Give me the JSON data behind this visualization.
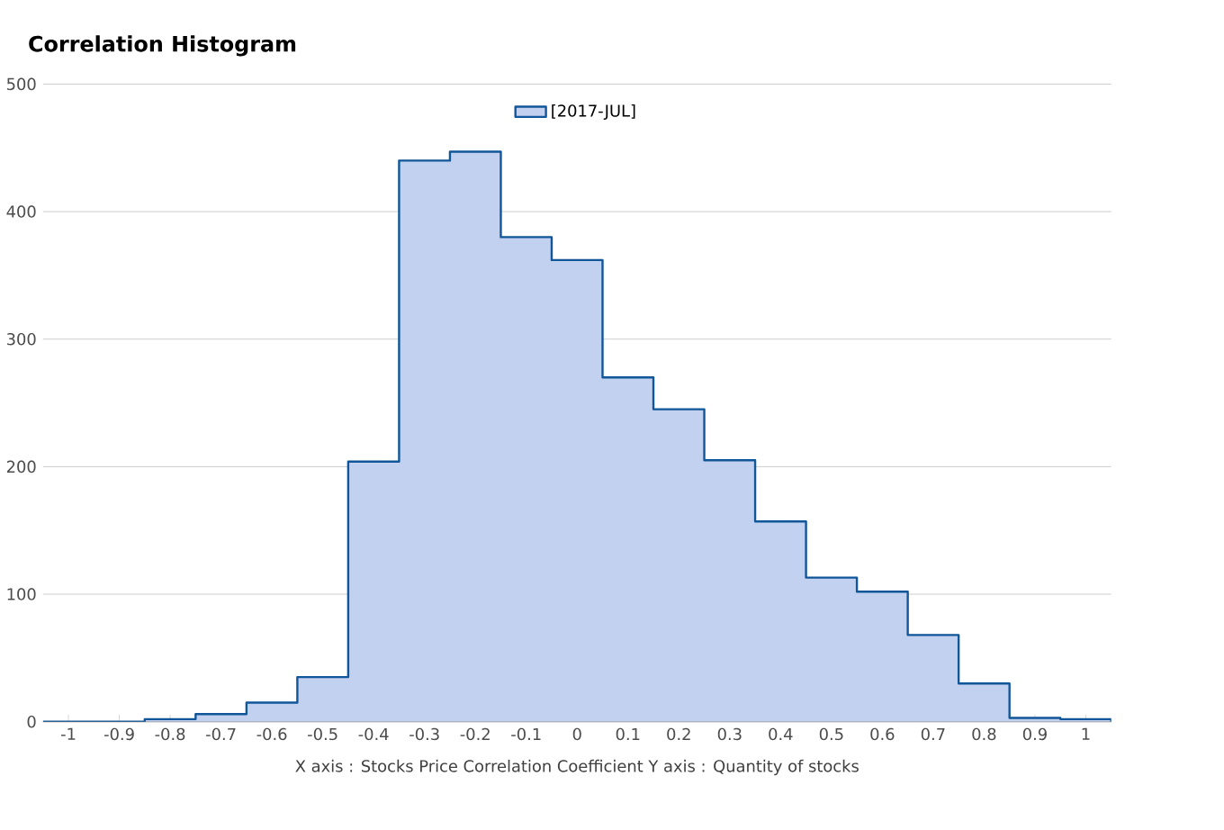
{
  "chart_data": {
    "type": "histogram",
    "title": "Correlation Histogram",
    "xlabel": "X axis : Stocks Price Correlation Coefficient  Y axis : Quantity of stocks",
    "bins": [
      -1.05,
      -0.95,
      -0.85,
      -0.75,
      -0.65,
      -0.55,
      -0.45,
      -0.35,
      -0.25,
      -0.15,
      -0.05,
      0.05,
      0.15,
      0.25,
      0.35,
      0.45,
      0.55,
      0.65,
      0.75,
      0.85,
      0.95,
      1.05
    ],
    "series": [
      {
        "name": "[2017-JUL]",
        "color": "#c2d1f0",
        "values": [
          0,
          0,
          2,
          6,
          15,
          35,
          204,
          440,
          447,
          380,
          362,
          270,
          245,
          205,
          157,
          113,
          102,
          68,
          30,
          3,
          2
        ]
      }
    ],
    "xlim": [
      -1.05,
      1.05
    ],
    "ylim": [
      0,
      500
    ],
    "xticks": [
      -1,
      -0.9,
      -0.8,
      -0.7,
      -0.6,
      -0.5,
      -0.4,
      -0.3,
      -0.2,
      -0.1,
      0,
      0.1,
      0.2,
      0.3,
      0.4,
      0.5,
      0.6,
      0.7,
      0.8,
      0.9,
      1
    ],
    "yticks": [
      0,
      100,
      200,
      300,
      400,
      500
    ],
    "grid": "y",
    "legend": "top"
  }
}
